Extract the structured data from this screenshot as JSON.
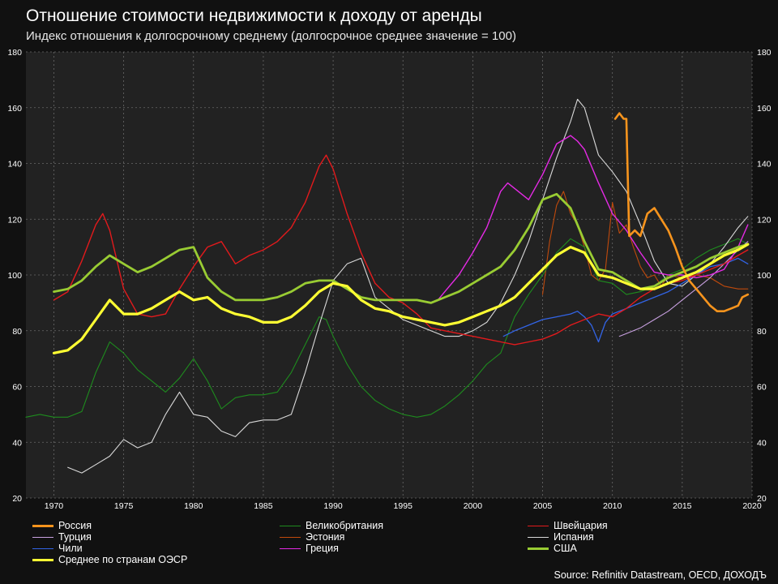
{
  "title": "Отношение стоимости недвижимости к доходу от аренды",
  "subtitle": "Индекс отношения к долгосрочному среднему (долгосрочное среднее значение = 100)",
  "source": "Source: Refinitiv Datastream, OECD, ДОХОДЪ",
  "chart_data": {
    "type": "line",
    "xlim": [
      1968,
      2020
    ],
    "ylim": [
      20,
      180
    ],
    "x_ticks": [
      1970,
      1975,
      1980,
      1985,
      1990,
      1995,
      2000,
      2005,
      2010,
      2015,
      2020
    ],
    "y_ticks": [
      20,
      40,
      60,
      80,
      100,
      120,
      140,
      160,
      180
    ],
    "grid": true,
    "legend_position": "bottom",
    "series": [
      {
        "name": "Россия",
        "color": "#f7941d",
        "width": 2.6,
        "x": [
          2010.2,
          2010.5,
          2010.8,
          2011.0,
          2011.2,
          2011.6,
          2012.0,
          2012.5,
          2013.0,
          2013.5,
          2014.0,
          2014.5,
          2015.0,
          2015.5,
          2016.0,
          2016.5,
          2017.0,
          2017.5,
          2018.0,
          2018.5,
          2019.0,
          2019.3,
          2019.7
        ],
        "y": [
          156,
          158,
          156,
          156,
          114,
          116,
          114,
          122,
          124,
          120,
          116,
          110,
          103,
          98,
          95,
          92,
          89,
          87,
          87,
          88,
          89,
          92,
          93
        ]
      },
      {
        "name": "Великобритания",
        "color": "#1e8c1e",
        "width": 1.1,
        "x": [
          1968,
          1969,
          1970,
          1971,
          1972,
          1973,
          1974,
          1975,
          1976,
          1977,
          1978,
          1979,
          1980,
          1981,
          1982,
          1983,
          1984,
          1985,
          1986,
          1987,
          1988,
          1989,
          1989.5,
          1990,
          1991,
          1992,
          1993,
          1994,
          1995,
          1996,
          1997,
          1998,
          1999,
          2000,
          2001,
          2002,
          2003,
          2004,
          2005,
          2006,
          2007,
          2008,
          2009,
          2010,
          2011,
          2012,
          2013,
          2014,
          2015,
          2016,
          2017,
          2018,
          2019,
          2019.7
        ],
        "y": [
          49,
          50,
          49,
          49,
          51,
          65,
          76,
          72,
          66,
          62,
          58,
          63,
          70,
          62,
          52,
          56,
          57,
          57,
          58,
          65,
          75,
          85,
          84,
          78,
          68,
          60,
          55,
          52,
          50,
          49,
          50,
          53,
          57,
          62,
          68,
          72,
          85,
          93,
          100,
          108,
          113,
          110,
          98,
          97,
          93,
          94,
          96,
          100,
          102,
          106,
          109,
          111,
          113,
          111
        ]
      },
      {
        "name": "Швейцария",
        "color": "#e31a1c",
        "width": 1.4,
        "x": [
          1970,
          1971,
          1972,
          1973,
          1973.5,
          1974,
          1975,
          1976,
          1977,
          1978,
          1979,
          1980,
          1981,
          1982,
          1983,
          1984,
          1985,
          1986,
          1987,
          1988,
          1989,
          1989.5,
          1990,
          1991,
          1992,
          1993,
          1994,
          1995,
          1996,
          1997,
          1998,
          1999,
          2000,
          2001,
          2002,
          2003,
          2004,
          2005,
          2006,
          2007,
          2008,
          2009,
          2010,
          2011,
          2012,
          2013,
          2014,
          2015,
          2016,
          2017,
          2018,
          2019,
          2019.7
        ],
        "y": [
          91,
          94,
          105,
          118,
          122,
          116,
          95,
          86,
          85,
          86,
          95,
          103,
          110,
          112,
          104,
          107,
          109,
          112,
          117,
          126,
          139,
          143,
          138,
          122,
          108,
          97,
          92,
          90,
          86,
          81,
          80,
          79,
          78,
          77,
          76,
          75,
          76,
          77,
          79,
          82,
          84,
          86,
          85,
          88,
          92,
          95,
          97,
          98,
          100,
          102,
          104,
          107,
          109
        ]
      },
      {
        "name": "Турция",
        "color": "#c8a0e0",
        "width": 1.1,
        "x": [
          2010.5,
          2011,
          2012,
          2013,
          2014,
          2015,
          2016,
          2017,
          2018,
          2019,
          2019.7
        ],
        "y": [
          78,
          79,
          81,
          84,
          87,
          91,
          95,
          99,
          104,
          109,
          112
        ]
      },
      {
        "name": "Эстония",
        "color": "#c04a0c",
        "width": 1.1,
        "x": [
          2005,
          2005.5,
          2006,
          2006.5,
          2007,
          2007.5,
          2008,
          2008.5,
          2009,
          2009.5,
          2010,
          2010.5,
          2011,
          2011.5,
          2012,
          2012.5,
          2013,
          2013.5,
          2014,
          2015,
          2016,
          2017,
          2018,
          2019,
          2019.7
        ],
        "y": [
          93,
          112,
          125,
          130,
          122,
          118,
          110,
          100,
          98,
          102,
          126,
          115,
          118,
          110,
          103,
          99,
          100,
          96,
          100,
          99,
          100,
          99,
          96,
          95,
          95
        ]
      },
      {
        "name": "Испания",
        "color": "#d9d9d9",
        "width": 1.1,
        "x": [
          1971,
          1972,
          1973,
          1974,
          1975,
          1976,
          1977,
          1978,
          1979,
          1980,
          1981,
          1982,
          1983,
          1984,
          1985,
          1986,
          1987,
          1988,
          1989,
          1990,
          1991,
          1992,
          1993,
          1994,
          1995,
          1996,
          1997,
          1998,
          1999,
          2000,
          2001,
          2002,
          2003,
          2004,
          2005,
          2006,
          2007,
          2007.5,
          2008,
          2009,
          2010,
          2011,
          2012,
          2013,
          2014,
          2015,
          2016,
          2017,
          2018,
          2019,
          2019.7
        ],
        "y": [
          31,
          29,
          32,
          35,
          41,
          38,
          40,
          50,
          58,
          50,
          49,
          44,
          42,
          47,
          48,
          48,
          50,
          65,
          82,
          98,
          104,
          106,
          92,
          88,
          84,
          82,
          80,
          78,
          78,
          80,
          83,
          90,
          100,
          112,
          127,
          142,
          155,
          163,
          160,
          143,
          137,
          130,
          118,
          105,
          97,
          96,
          100,
          104,
          110,
          117,
          121
        ]
      },
      {
        "name": "Чили",
        "color": "#3264e6",
        "width": 1.3,
        "x": [
          2002.2,
          2003,
          2004,
          2005,
          2006,
          2007,
          2007.5,
          2008,
          2008.5,
          2009,
          2009.5,
          2010,
          2011,
          2012,
          2013,
          2014,
          2015,
          2016,
          2017,
          2018,
          2019,
          2019.7
        ],
        "y": [
          78,
          80,
          82,
          84,
          85,
          86,
          87,
          85,
          82,
          76,
          83,
          86,
          88,
          90,
          92,
          94,
          97,
          100,
          103,
          104,
          106,
          104
        ]
      },
      {
        "name": "Греция",
        "color": "#e52ae5",
        "width": 1.4,
        "x": [
          1997.5,
          1998,
          1999,
          2000,
          2001,
          2002,
          2002.5,
          2003,
          2004,
          2005,
          2006,
          2007,
          2007.5,
          2008,
          2009,
          2010,
          2011,
          2012,
          2013,
          2014,
          2015,
          2016,
          2017,
          2018,
          2019,
          2019.7
        ],
        "y": [
          91,
          94,
          100,
          108,
          117,
          130,
          133,
          131,
          127,
          136,
          147,
          150,
          148,
          145,
          133,
          122,
          116,
          108,
          101,
          100,
          100,
          99,
          100,
          102,
          110,
          118
        ]
      },
      {
        "name": "США",
        "color": "#99cc33",
        "width": 2.8,
        "x": [
          1970,
          1971,
          1972,
          1973,
          1974,
          1975,
          1976,
          1977,
          1978,
          1979,
          1980,
          1981,
          1982,
          1983,
          1984,
          1985,
          1986,
          1987,
          1988,
          1989,
          1990,
          1991,
          1992,
          1993,
          1994,
          1995,
          1996,
          1997,
          1998,
          1999,
          2000,
          2001,
          2002,
          2003,
          2004,
          2005,
          2006,
          2007,
          2008,
          2009,
          2010,
          2011,
          2012,
          2013,
          2014,
          2015,
          2016,
          2017,
          2018,
          2019,
          2019.7
        ],
        "y": [
          94,
          95,
          98,
          103,
          107,
          104,
          101,
          103,
          106,
          109,
          110,
          99,
          94,
          91,
          91,
          91,
          92,
          94,
          97,
          98,
          98,
          95,
          92,
          91,
          91,
          91,
          91,
          90,
          92,
          94,
          97,
          100,
          103,
          109,
          117,
          127,
          129,
          124,
          112,
          102,
          101,
          98,
          95,
          96,
          99,
          101,
          103,
          106,
          108,
          110,
          111
        ]
      },
      {
        "name": "Среднее по странам ОЭСР",
        "color": "#ffff33",
        "width": 3.2,
        "x": [
          1970,
          1971,
          1972,
          1973,
          1974,
          1975,
          1976,
          1977,
          1978,
          1979,
          1980,
          1981,
          1982,
          1983,
          1984,
          1985,
          1986,
          1987,
          1988,
          1989,
          1990,
          1991,
          1992,
          1993,
          1994,
          1995,
          1996,
          1997,
          1998,
          1999,
          2000,
          2001,
          2002,
          2003,
          2004,
          2005,
          2006,
          2007,
          2008,
          2009,
          2010,
          2011,
          2012,
          2013,
          2014,
          2015,
          2016,
          2017,
          2018,
          2019,
          2019.7
        ],
        "y": [
          72,
          73,
          77,
          84,
          91,
          86,
          86,
          88,
          91,
          94,
          91,
          92,
          88,
          86,
          85,
          83,
          83,
          85,
          89,
          94,
          97,
          96,
          91,
          88,
          87,
          85,
          84,
          83,
          82,
          83,
          85,
          87,
          89,
          92,
          97,
          102,
          107,
          110,
          108,
          100,
          99,
          97,
          95,
          95,
          97,
          99,
          101,
          104,
          107,
          109,
          111
        ]
      }
    ]
  },
  "legend": {
    "items": [
      {
        "label": "Россия",
        "color": "#f7941d",
        "width": 3
      },
      {
        "label": "Великобритания",
        "color": "#1e8c1e",
        "width": 1
      },
      {
        "label": "Швейцария",
        "color": "#e31a1c",
        "width": 1
      },
      {
        "label": "Турция",
        "color": "#c8a0e0",
        "width": 1
      },
      {
        "label": "Эстония",
        "color": "#c04a0c",
        "width": 1
      },
      {
        "label": "Испания",
        "color": "#d9d9d9",
        "width": 1
      },
      {
        "label": "Чили",
        "color": "#3264e6",
        "width": 1
      },
      {
        "label": "Греция",
        "color": "#e52ae5",
        "width": 1
      },
      {
        "label": "США",
        "color": "#99cc33",
        "width": 3
      },
      {
        "label": "Среднее по странам ОЭСР",
        "color": "#ffff33",
        "width": 3
      }
    ]
  }
}
